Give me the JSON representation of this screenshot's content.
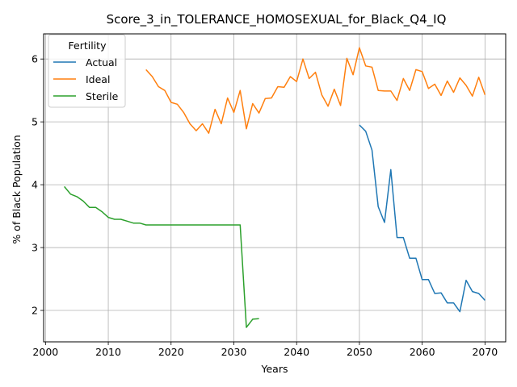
{
  "chart_data": {
    "type": "line",
    "title": "Score_3_in_TOLERANCE_HOMOSEXUAL_for_Black_Q4_IQ",
    "xlabel": "Years",
    "ylabel": "% of Black Population",
    "xlim": [
      1999.7,
      2073.3
    ],
    "ylim": [
      1.5,
      6.4
    ],
    "xticks": [
      2000,
      2010,
      2020,
      2030,
      2040,
      2050,
      2060,
      2070
    ],
    "yticks": [
      2,
      3,
      4,
      5,
      6
    ],
    "grid": true,
    "legend": {
      "title": "Fertility",
      "position": "top-left"
    },
    "series": [
      {
        "name": "Actual",
        "color": "#1f77b4",
        "x": [
          2050,
          2051,
          2052,
          2053,
          2054,
          2055,
          2056,
          2057,
          2058,
          2059,
          2060,
          2061,
          2062,
          2063,
          2064,
          2065,
          2066,
          2067,
          2068,
          2069,
          2070
        ],
        "y": [
          4.95,
          4.85,
          4.55,
          3.65,
          3.4,
          4.24,
          3.16,
          3.16,
          2.83,
          2.83,
          2.49,
          2.49,
          2.27,
          2.28,
          2.12,
          2.12,
          1.98,
          2.48,
          2.3,
          2.27,
          2.16
        ]
      },
      {
        "name": "Ideal",
        "color": "#ff7f0e",
        "x": [
          2016,
          2017,
          2018,
          2019,
          2020,
          2021,
          2022,
          2023,
          2024,
          2025,
          2026,
          2027,
          2028,
          2029,
          2030,
          2031,
          2032,
          2033,
          2034,
          2035,
          2036,
          2037,
          2038,
          2039,
          2040,
          2041,
          2042,
          2043,
          2044,
          2045,
          2046,
          2047,
          2048,
          2049,
          2050,
          2051,
          2052,
          2053,
          2054,
          2055,
          2056,
          2057,
          2058,
          2059,
          2060,
          2061,
          2062,
          2063,
          2064,
          2065,
          2066,
          2067,
          2068,
          2069,
          2070
        ],
        "y": [
          5.83,
          5.72,
          5.56,
          5.5,
          5.31,
          5.28,
          5.15,
          4.97,
          4.86,
          4.97,
          4.82,
          5.2,
          4.97,
          5.38,
          5.15,
          5.5,
          4.89,
          5.29,
          5.14,
          5.37,
          5.38,
          5.56,
          5.55,
          5.72,
          5.64,
          6.0,
          5.69,
          5.79,
          5.43,
          5.25,
          5.52,
          5.26,
          6.01,
          5.75,
          6.18,
          5.89,
          5.87,
          5.5,
          5.49,
          5.49,
          5.34,
          5.69,
          5.5,
          5.83,
          5.8,
          5.53,
          5.6,
          5.42,
          5.65,
          5.47,
          5.7,
          5.58,
          5.41,
          5.71,
          5.43
        ]
      },
      {
        "name": "Sterile",
        "color": "#2ca02c",
        "x": [
          2003,
          2004,
          2005,
          2006,
          2007,
          2008,
          2009,
          2010,
          2011,
          2012,
          2013,
          2014,
          2015,
          2016,
          2017,
          2018,
          2019,
          2020,
          2021,
          2022,
          2023,
          2024,
          2025,
          2026,
          2027,
          2028,
          2029,
          2030,
          2031,
          2032,
          2033,
          2034
        ],
        "y": [
          3.97,
          3.85,
          3.81,
          3.74,
          3.64,
          3.64,
          3.57,
          3.48,
          3.45,
          3.45,
          3.42,
          3.39,
          3.39,
          3.36,
          3.36,
          3.36,
          3.36,
          3.36,
          3.36,
          3.36,
          3.36,
          3.36,
          3.36,
          3.36,
          3.36,
          3.36,
          3.36,
          3.36,
          3.36,
          1.73,
          1.86,
          1.87
        ]
      }
    ]
  }
}
